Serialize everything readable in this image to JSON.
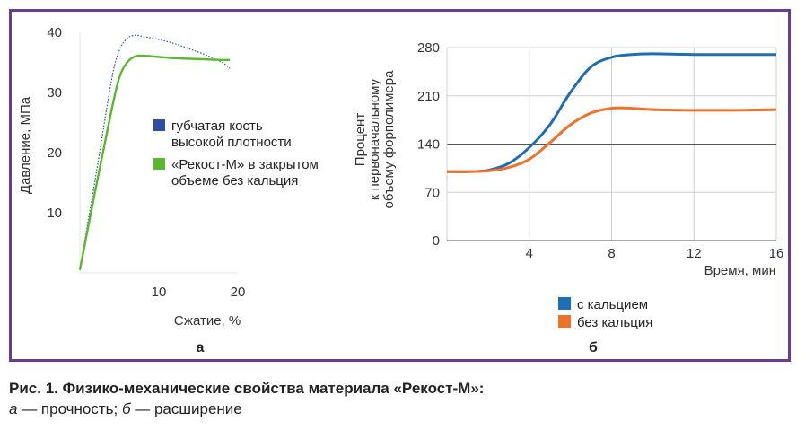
{
  "figure": {
    "panel_a_label": "а",
    "panel_b_label": "б"
  },
  "caption": {
    "title": "Рис. 1. Физико-механические свойства материала «Рекост-М»:",
    "a_letter": "а",
    "a_text": " — прочность; ",
    "b_letter": "б",
    "b_text": " — расширение"
  },
  "chart_data": [
    {
      "type": "line",
      "panel": "а",
      "xlabel": "Сжатие, %",
      "ylabel": "Давление, МПа",
      "xlim": [
        0,
        20
      ],
      "ylim": [
        0,
        40
      ],
      "xticks": [
        "10",
        "20"
      ],
      "yticks": [
        "10",
        "20",
        "30",
        "40"
      ],
      "grid": false,
      "legend_position": "right-middle",
      "series": [
        {
          "name": "губчатая кость\nвысокой плотности",
          "color": "#2e4fa6",
          "style": "dotted",
          "x": [
            0,
            2,
            4,
            5,
            6,
            7,
            8,
            10,
            12,
            14,
            16,
            18,
            19
          ],
          "y": [
            0.5,
            16,
            32,
            37,
            39,
            39.5,
            39.3,
            38.8,
            38.1,
            37.2,
            36.2,
            35,
            34
          ]
        },
        {
          "name": "«Рекост-М» в закрытом\nобъеме без кальция",
          "color": "#5ab82e",
          "style": "solid",
          "x": [
            0,
            2,
            4,
            5,
            6,
            7,
            8,
            10,
            12,
            14,
            16,
            18,
            19
          ],
          "y": [
            0.5,
            14,
            27,
            32.5,
            35,
            36,
            36.1,
            35.9,
            35.7,
            35.6,
            35.5,
            35.4,
            35.4
          ]
        }
      ]
    },
    {
      "type": "line",
      "panel": "б",
      "xlabel": "Время, мин",
      "ylabel": "Процент\nк первоначальному\nобъему форполимера",
      "xlim": [
        0,
        16
      ],
      "ylim": [
        0,
        280
      ],
      "xticks": [
        "4",
        "8",
        "12",
        "16"
      ],
      "yticks": [
        "0",
        "70",
        "140",
        "210",
        "280"
      ],
      "grid": true,
      "legend_position": "bottom",
      "series": [
        {
          "name": "с кальцием",
          "color": "#1f6eb4",
          "x": [
            0,
            1,
            2,
            3,
            4,
            5,
            6,
            7,
            8,
            9,
            10,
            12,
            14,
            16
          ],
          "y": [
            100,
            100,
            102,
            112,
            135,
            168,
            215,
            252,
            266,
            270,
            271,
            270,
            270,
            270
          ]
        },
        {
          "name": "без кальция",
          "color": "#f0722a",
          "x": [
            0,
            1,
            2,
            3,
            4,
            5,
            6,
            7,
            8,
            9,
            10,
            12,
            14,
            16
          ],
          "y": [
            100,
            100,
            101,
            106,
            118,
            142,
            168,
            185,
            192,
            192,
            190,
            189,
            189,
            190
          ]
        }
      ]
    }
  ]
}
